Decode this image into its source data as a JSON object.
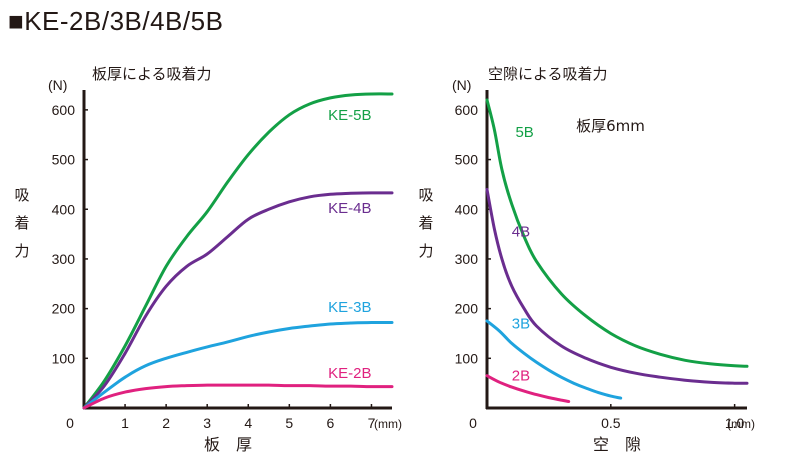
{
  "heading": "■KE-2B/3B/4B/5B",
  "colors": {
    "text": "#231815",
    "axis": "#231815",
    "KE-2B": "#e0217f",
    "KE-3B": "#1fa3de",
    "KE-4B": "#6a2d8f",
    "KE-5B": "#13a046"
  },
  "chart_data": [
    {
      "type": "line",
      "title": "板厚による吸着力",
      "unit_y": "(N)",
      "unit_x": "(mm)",
      "xlabel": "板　厚",
      "ylabel": "吸着力",
      "xlim": [
        0,
        7.5
      ],
      "ylim": [
        0,
        640
      ],
      "x_ticks": [
        "0",
        "1",
        "2",
        "3",
        "4",
        "5",
        "6",
        "7"
      ],
      "y_ticks": [
        "100",
        "200",
        "300",
        "400",
        "500",
        "600"
      ],
      "grid": false,
      "series": [
        {
          "name": "KE-5B",
          "label_at": [
            7.0,
            580
          ],
          "x": [
            0,
            0.5,
            1,
            1.5,
            2,
            2.5,
            3,
            3.5,
            4,
            4.5,
            5,
            5.5,
            6,
            6.5,
            7,
            7.5
          ],
          "y": [
            0,
            55,
            125,
            205,
            285,
            345,
            395,
            455,
            510,
            555,
            590,
            612,
            624,
            630,
            632,
            632
          ]
        },
        {
          "name": "KE-4B",
          "label_at": [
            7.0,
            392
          ],
          "x": [
            0,
            0.5,
            1,
            1.5,
            2,
            2.5,
            3,
            3.5,
            4,
            4.5,
            5,
            5.5,
            6,
            6.5,
            7,
            7.5
          ],
          "y": [
            0,
            45,
            110,
            185,
            245,
            285,
            310,
            345,
            380,
            400,
            415,
            425,
            430,
            432,
            433,
            433
          ]
        },
        {
          "name": "KE-3B",
          "label_at": [
            7.0,
            193
          ],
          "x": [
            0,
            0.5,
            1,
            1.5,
            2,
            2.5,
            3,
            3.5,
            4,
            4.5,
            5,
            5.5,
            6,
            6.5,
            7,
            7.5
          ],
          "y": [
            0,
            32,
            62,
            85,
            100,
            112,
            123,
            133,
            144,
            153,
            160,
            165,
            169,
            171,
            172,
            172
          ]
        },
        {
          "name": "KE-2B",
          "label_at": [
            7.0,
            60
          ],
          "x": [
            0,
            0.5,
            1,
            1.5,
            2,
            2.5,
            3,
            3.5,
            4,
            4.5,
            5,
            5.5,
            6,
            6.5,
            7,
            7.5
          ],
          "y": [
            0,
            20,
            32,
            39,
            43,
            45,
            46,
            46,
            46,
            46,
            45,
            45,
            44,
            44,
            43,
            43
          ]
        }
      ]
    },
    {
      "type": "line",
      "title": "空隙による吸着力",
      "unit_y": "(N)",
      "unit_x": "(mm)",
      "xlabel": "空　隙",
      "ylabel": "吸着力",
      "annotation": "板厚6mm",
      "xlim": [
        0,
        1.05
      ],
      "ylim": [
        0,
        640
      ],
      "x_ticks": [
        {
          "value": 0,
          "label": "0"
        },
        {
          "value": 0.5,
          "label": "0.5"
        },
        {
          "value": 1.0,
          "label": "1.0"
        }
      ],
      "y_ticks": [
        "100",
        "200",
        "300",
        "400",
        "500",
        "600"
      ],
      "grid": false,
      "series": [
        {
          "name": "5B",
          "label_at": [
            0.115,
            545
          ],
          "x": [
            0,
            0.03,
            0.06,
            0.1,
            0.15,
            0.2,
            0.3,
            0.4,
            0.5,
            0.6,
            0.7,
            0.8,
            0.9,
            1.0,
            1.05
          ],
          "y": [
            620,
            560,
            480,
            410,
            345,
            295,
            230,
            185,
            150,
            125,
            108,
            96,
            89,
            85,
            84
          ]
        },
        {
          "name": "4B",
          "label_at": [
            0.1,
            345
          ],
          "x": [
            0,
            0.03,
            0.06,
            0.1,
            0.15,
            0.2,
            0.3,
            0.4,
            0.5,
            0.6,
            0.7,
            0.8,
            0.9,
            1.0,
            1.05
          ],
          "y": [
            440,
            360,
            300,
            245,
            200,
            165,
            125,
            100,
            82,
            70,
            62,
            56,
            52,
            50,
            50
          ]
        },
        {
          "name": "3B",
          "label_at": [
            0.1,
            160
          ],
          "x": [
            0,
            0.05,
            0.1,
            0.15,
            0.2,
            0.25,
            0.3,
            0.35,
            0.4,
            0.45,
            0.5,
            0.54
          ],
          "y": [
            175,
            155,
            130,
            110,
            92,
            76,
            62,
            50,
            40,
            31,
            24,
            20
          ]
        },
        {
          "name": "2B",
          "label_at": [
            0.1,
            55
          ],
          "x": [
            0,
            0.05,
            0.1,
            0.15,
            0.2,
            0.25,
            0.3,
            0.33
          ],
          "y": [
            65,
            52,
            42,
            34,
            27,
            21,
            16,
            13
          ]
        }
      ]
    }
  ]
}
